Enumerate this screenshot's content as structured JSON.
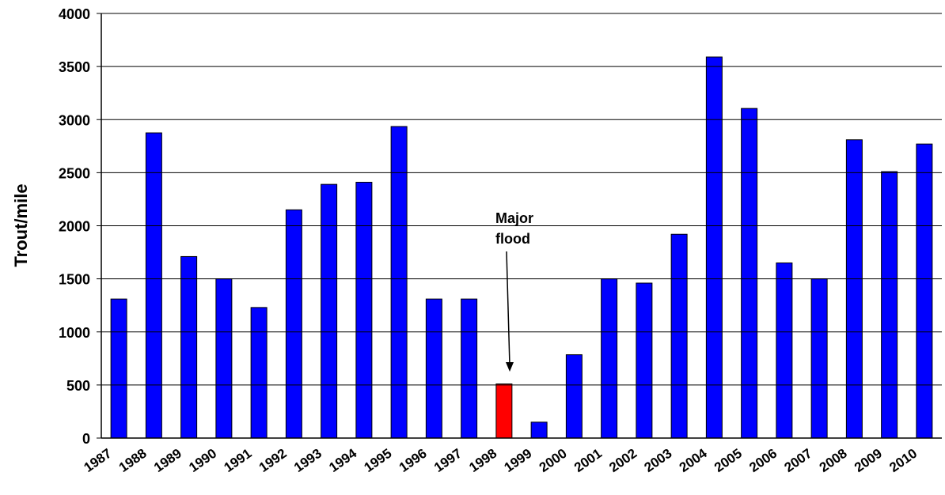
{
  "chart_data": {
    "type": "bar",
    "y_label": "Trout/mile",
    "categories": [
      "1987",
      "1988",
      "1989",
      "1990",
      "1991",
      "1992",
      "1993",
      "1994",
      "1995",
      "1996",
      "1997",
      "1998",
      "1999",
      "2000",
      "2001",
      "2002",
      "2003",
      "2004",
      "2005",
      "2006",
      "2007",
      "2008",
      "2009",
      "2010"
    ],
    "values": [
      1310,
      2875,
      1710,
      1500,
      1230,
      2150,
      2390,
      2410,
      2935,
      1310,
      1310,
      510,
      150,
      785,
      1500,
      1460,
      1920,
      3590,
      3105,
      1650,
      1500,
      2810,
      2510,
      2770
    ],
    "colors": [
      "#0000ff",
      "#0000ff",
      "#0000ff",
      "#0000ff",
      "#0000ff",
      "#0000ff",
      "#0000ff",
      "#0000ff",
      "#0000ff",
      "#0000ff",
      "#0000ff",
      "#ff0000",
      "#0000ff",
      "#0000ff",
      "#0000ff",
      "#0000ff",
      "#0000ff",
      "#0000ff",
      "#0000ff",
      "#0000ff",
      "#0000ff",
      "#0000ff",
      "#0000ff",
      "#0000ff"
    ],
    "annotation": [
      "Major",
      "flood"
    ],
    "ylim": [
      0,
      4000
    ],
    "yticks": [
      0,
      500,
      1000,
      1500,
      2000,
      2500,
      3000,
      3500,
      4000
    ],
    "grid": true
  }
}
